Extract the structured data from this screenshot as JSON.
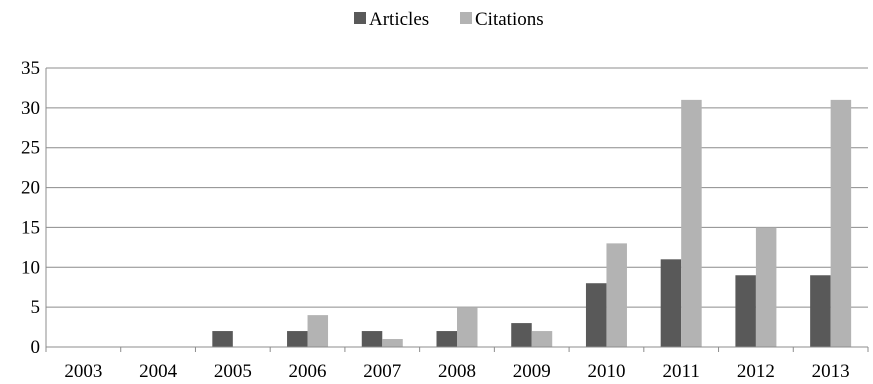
{
  "chart_data": {
    "type": "bar",
    "categories": [
      "2003",
      "2004",
      "2005",
      "2006",
      "2007",
      "2008",
      "2009",
      "2010",
      "2011",
      "2012",
      "2013"
    ],
    "series": [
      {
        "name": "Articles",
        "values": [
          0,
          0,
          2,
          2,
          2,
          2,
          3,
          8,
          11,
          9,
          9
        ],
        "color": "#595959"
      },
      {
        "name": "Citations",
        "values": [
          0,
          0,
          0,
          4,
          1,
          5,
          2,
          13,
          31,
          15,
          31
        ],
        "color": "#b3b3b3"
      }
    ],
    "yticks": [
      "0",
      "5",
      "10",
      "15",
      "20",
      "25",
      "30",
      "35"
    ],
    "ylim": [
      0,
      35
    ],
    "grid": true,
    "legend_position": "top-center",
    "title": "",
    "xlabel": "",
    "ylabel": ""
  }
}
